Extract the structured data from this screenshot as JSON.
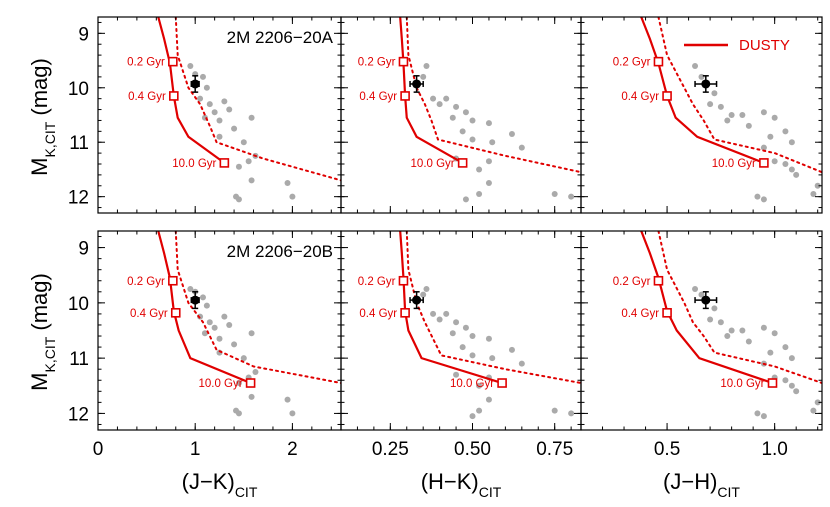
{
  "chart_data": {
    "type": "scatter",
    "ylabel": "M_K,CIT (mag)",
    "ylim": [
      12.3,
      8.7
    ],
    "y_ticks": [
      9,
      10,
      11,
      12
    ],
    "legend": {
      "label": "DUSTY",
      "color": "#e00000",
      "placement": "top-right"
    },
    "age_labels": [
      "0.2 Gyr",
      "0.4 Gyr",
      "10.0 Gyr"
    ],
    "columns": [
      {
        "xlabel_main": "(J−K)",
        "xlabel_sub": "CIT",
        "xlim": [
          0,
          2.5
        ],
        "ticks": [
          0,
          1,
          2
        ],
        "tick_labels": [
          "0",
          "1",
          "2"
        ]
      },
      {
        "xlabel_main": "(H−K)",
        "xlabel_sub": "CIT",
        "xlim": [
          0.1,
          0.83
        ],
        "ticks": [
          0.25,
          0.5,
          0.75
        ],
        "tick_labels": [
          "0.25",
          "0.50",
          "0.75"
        ]
      },
      {
        "xlabel_main": "(J−H)",
        "xlabel_sub": "CIT",
        "xlim": [
          0.1,
          1.22
        ],
        "ticks": [
          0.5,
          1.0
        ],
        "tick_labels": [
          "0.5",
          "1.0"
        ]
      }
    ],
    "rows": [
      {
        "label": "2M 2206−20A"
      },
      {
        "label": "2M 2206−20B"
      }
    ],
    "panels": [
      [
        {
          "solid": [
            [
              0.62,
              8.7
            ],
            [
              0.68,
              9.1
            ],
            [
              0.74,
              9.55
            ],
            [
              0.78,
              10.15
            ],
            [
              0.82,
              10.55
            ],
            [
              0.93,
              10.9
            ],
            [
              1.3,
              11.38
            ]
          ],
          "dotted": [
            [
              0.8,
              8.7
            ],
            [
              0.82,
              9.4
            ],
            [
              0.93,
              10.0
            ],
            [
              1.05,
              10.3
            ],
            [
              1.15,
              10.7
            ],
            [
              1.22,
              11.0
            ],
            [
              1.7,
              11.3
            ],
            [
              2.5,
              11.7
            ]
          ],
          "markers": [
            [
              0.77,
              9.52
            ],
            [
              0.78,
              10.15
            ],
            [
              1.3,
              11.38
            ]
          ],
          "target": {
            "x": 1.0,
            "y": 9.93,
            "xerr": 0.04,
            "yerr": 0.15
          },
          "field": [
            [
              0.95,
              9.6
            ],
            [
              1.0,
              9.75
            ],
            [
              1.08,
              9.8
            ],
            [
              1.12,
              10.0
            ],
            [
              1.05,
              10.2
            ],
            [
              1.15,
              10.3
            ],
            [
              1.2,
              10.45
            ],
            [
              1.1,
              10.55
            ],
            [
              1.25,
              10.6
            ],
            [
              1.3,
              10.25
            ],
            [
              1.35,
              10.4
            ],
            [
              1.25,
              10.9
            ],
            [
              1.4,
              10.75
            ],
            [
              1.5,
              11.0
            ],
            [
              1.58,
              10.55
            ],
            [
              1.62,
              11.25
            ],
            [
              1.55,
              11.35
            ],
            [
              1.45,
              11.45
            ],
            [
              1.58,
              11.7
            ],
            [
              1.42,
              12.0
            ],
            [
              1.45,
              12.05
            ],
            [
              1.95,
              11.75
            ],
            [
              2.0,
              12.0
            ]
          ]
        },
        {
          "solid": [
            [
              0.28,
              8.7
            ],
            [
              0.285,
              9.1
            ],
            [
              0.29,
              9.55
            ],
            [
              0.295,
              10.15
            ],
            [
              0.3,
              10.55
            ],
            [
              0.33,
              10.9
            ],
            [
              0.47,
              11.38
            ]
          ],
          "dotted": [
            [
              0.3,
              8.7
            ],
            [
              0.305,
              9.4
            ],
            [
              0.33,
              10.0
            ],
            [
              0.355,
              10.3
            ],
            [
              0.375,
              10.6
            ],
            [
              0.395,
              10.95
            ],
            [
              0.6,
              11.25
            ],
            [
              0.83,
              11.55
            ]
          ],
          "markers": [
            [
              0.29,
              9.52
            ],
            [
              0.295,
              10.15
            ],
            [
              0.47,
              11.38
            ]
          ],
          "target": {
            "x": 0.33,
            "y": 9.93,
            "xerr": 0.02,
            "yerr": 0.15
          },
          "field": [
            [
              0.36,
              9.6
            ],
            [
              0.35,
              9.8
            ],
            [
              0.38,
              10.2
            ],
            [
              0.4,
              10.3
            ],
            [
              0.42,
              10.2
            ],
            [
              0.45,
              10.35
            ],
            [
              0.48,
              10.45
            ],
            [
              0.44,
              10.55
            ],
            [
              0.5,
              10.6
            ],
            [
              0.55,
              10.65
            ],
            [
              0.47,
              10.8
            ],
            [
              0.5,
              10.95
            ],
            [
              0.56,
              11.0
            ],
            [
              0.62,
              10.85
            ],
            [
              0.65,
              11.1
            ],
            [
              0.45,
              11.3
            ],
            [
              0.55,
              11.35
            ],
            [
              0.52,
              11.5
            ],
            [
              0.55,
              11.75
            ],
            [
              0.52,
              11.95
            ],
            [
              0.48,
              12.05
            ],
            [
              0.75,
              11.95
            ],
            [
              0.8,
              12.0
            ]
          ]
        },
        {
          "solid": [
            [
              0.38,
              8.7
            ],
            [
              0.42,
              9.1
            ],
            [
              0.46,
              9.55
            ],
            [
              0.5,
              10.15
            ],
            [
              0.54,
              10.55
            ],
            [
              0.64,
              10.9
            ],
            [
              0.95,
              11.38
            ]
          ],
          "dotted": [
            [
              0.46,
              8.7
            ],
            [
              0.5,
              9.4
            ],
            [
              0.58,
              10.0
            ],
            [
              0.62,
              10.3
            ],
            [
              0.67,
              10.6
            ],
            [
              0.72,
              10.95
            ],
            [
              1.0,
              11.2
            ],
            [
              1.22,
              11.55
            ]
          ],
          "markers": [
            [
              0.46,
              9.52
            ],
            [
              0.5,
              10.15
            ],
            [
              0.95,
              11.38
            ]
          ],
          "target": {
            "x": 0.68,
            "y": 9.93,
            "xerr": 0.05,
            "yerr": 0.15
          },
          "field": [
            [
              0.63,
              9.6
            ],
            [
              0.66,
              9.8
            ],
            [
              0.72,
              10.1
            ],
            [
              0.7,
              10.3
            ],
            [
              0.75,
              10.35
            ],
            [
              0.8,
              10.5
            ],
            [
              0.78,
              10.6
            ],
            [
              0.85,
              10.5
            ],
            [
              0.95,
              10.45
            ],
            [
              1.0,
              10.55
            ],
            [
              0.88,
              10.7
            ],
            [
              0.98,
              10.9
            ],
            [
              1.05,
              10.8
            ],
            [
              1.08,
              11.0
            ],
            [
              0.95,
              11.1
            ],
            [
              1.0,
              11.35
            ],
            [
              1.05,
              11.4
            ],
            [
              1.08,
              11.5
            ],
            [
              1.1,
              11.6
            ],
            [
              0.92,
              12.0
            ],
            [
              0.95,
              12.05
            ],
            [
              1.2,
              11.8
            ],
            [
              1.18,
              11.95
            ]
          ]
        }
      ],
      [
        {
          "solid": [
            [
              0.62,
              8.7
            ],
            [
              0.68,
              9.1
            ],
            [
              0.74,
              9.55
            ],
            [
              0.78,
              10.15
            ],
            [
              0.83,
              10.5
            ],
            [
              0.95,
              11.0
            ],
            [
              1.57,
              11.45
            ]
          ],
          "dotted": [
            [
              0.8,
              8.7
            ],
            [
              0.82,
              9.4
            ],
            [
              0.93,
              10.0
            ],
            [
              1.08,
              10.35
            ],
            [
              1.15,
              10.6
            ],
            [
              1.22,
              10.85
            ],
            [
              1.6,
              11.15
            ],
            [
              2.5,
              11.45
            ]
          ],
          "markers": [
            [
              0.77,
              9.6
            ],
            [
              0.8,
              10.18
            ],
            [
              1.57,
              11.45
            ]
          ],
          "target": {
            "x": 1.0,
            "y": 9.95,
            "xerr": 0.04,
            "yerr": 0.15
          },
          "field": [
            [
              0.95,
              9.75
            ],
            [
              1.0,
              9.8
            ],
            [
              1.08,
              9.9
            ],
            [
              1.12,
              10.05
            ],
            [
              1.05,
              10.25
            ],
            [
              1.15,
              10.35
            ],
            [
              1.2,
              10.45
            ],
            [
              1.1,
              10.55
            ],
            [
              1.25,
              10.65
            ],
            [
              1.3,
              10.25
            ],
            [
              1.35,
              10.4
            ],
            [
              1.25,
              10.9
            ],
            [
              1.4,
              10.75
            ],
            [
              1.5,
              11.0
            ],
            [
              1.58,
              10.55
            ],
            [
              1.62,
              11.25
            ],
            [
              1.55,
              11.35
            ],
            [
              1.45,
              11.45
            ],
            [
              1.58,
              11.7
            ],
            [
              1.42,
              11.95
            ],
            [
              1.45,
              12.0
            ],
            [
              1.95,
              11.75
            ],
            [
              2.0,
              12.0
            ]
          ]
        },
        {
          "solid": [
            [
              0.28,
              8.7
            ],
            [
              0.285,
              9.1
            ],
            [
              0.29,
              9.55
            ],
            [
              0.295,
              10.15
            ],
            [
              0.305,
              10.5
            ],
            [
              0.345,
              11.0
            ],
            [
              0.59,
              11.45
            ]
          ],
          "dotted": [
            [
              0.3,
              8.7
            ],
            [
              0.305,
              9.4
            ],
            [
              0.33,
              10.0
            ],
            [
              0.355,
              10.35
            ],
            [
              0.38,
              10.65
            ],
            [
              0.405,
              10.95
            ],
            [
              0.6,
              11.2
            ],
            [
              0.83,
              11.45
            ]
          ],
          "markers": [
            [
              0.29,
              9.6
            ],
            [
              0.295,
              10.18
            ],
            [
              0.59,
              11.45
            ]
          ],
          "target": {
            "x": 0.33,
            "y": 9.95,
            "xerr": 0.02,
            "yerr": 0.15
          },
          "field": [
            [
              0.36,
              9.75
            ],
            [
              0.35,
              9.85
            ],
            [
              0.38,
              10.2
            ],
            [
              0.4,
              10.3
            ],
            [
              0.42,
              10.2
            ],
            [
              0.45,
              10.35
            ],
            [
              0.48,
              10.45
            ],
            [
              0.44,
              10.55
            ],
            [
              0.5,
              10.6
            ],
            [
              0.55,
              10.65
            ],
            [
              0.47,
              10.8
            ],
            [
              0.5,
              10.95
            ],
            [
              0.56,
              11.0
            ],
            [
              0.62,
              10.85
            ],
            [
              0.65,
              11.1
            ],
            [
              0.45,
              11.3
            ],
            [
              0.55,
              11.35
            ],
            [
              0.52,
              11.5
            ],
            [
              0.55,
              11.75
            ],
            [
              0.52,
              11.95
            ],
            [
              0.5,
              12.05
            ],
            [
              0.75,
              11.95
            ],
            [
              0.8,
              12.0
            ]
          ]
        },
        {
          "solid": [
            [
              0.38,
              8.7
            ],
            [
              0.42,
              9.1
            ],
            [
              0.46,
              9.55
            ],
            [
              0.5,
              10.15
            ],
            [
              0.545,
              10.5
            ],
            [
              0.65,
              11.0
            ],
            [
              0.99,
              11.45
            ]
          ],
          "dotted": [
            [
              0.46,
              8.7
            ],
            [
              0.5,
              9.4
            ],
            [
              0.58,
              10.0
            ],
            [
              0.62,
              10.35
            ],
            [
              0.67,
              10.6
            ],
            [
              0.72,
              10.9
            ],
            [
              1.0,
              11.15
            ],
            [
              1.22,
              11.45
            ]
          ],
          "markers": [
            [
              0.46,
              9.6
            ],
            [
              0.5,
              10.18
            ],
            [
              0.99,
              11.45
            ]
          ],
          "target": {
            "x": 0.68,
            "y": 9.95,
            "xerr": 0.05,
            "yerr": 0.15
          },
          "field": [
            [
              0.63,
              9.75
            ],
            [
              0.66,
              9.85
            ],
            [
              0.72,
              10.1
            ],
            [
              0.7,
              10.3
            ],
            [
              0.75,
              10.35
            ],
            [
              0.8,
              10.5
            ],
            [
              0.78,
              10.6
            ],
            [
              0.85,
              10.5
            ],
            [
              0.95,
              10.45
            ],
            [
              1.0,
              10.55
            ],
            [
              0.88,
              10.7
            ],
            [
              0.98,
              10.9
            ],
            [
              1.05,
              10.8
            ],
            [
              1.08,
              11.0
            ],
            [
              0.95,
              11.1
            ],
            [
              1.0,
              11.35
            ],
            [
              1.05,
              11.4
            ],
            [
              1.08,
              11.5
            ],
            [
              1.1,
              11.6
            ],
            [
              0.92,
              12.0
            ],
            [
              0.95,
              12.05
            ],
            [
              1.2,
              11.8
            ],
            [
              1.18,
              11.95
            ]
          ]
        }
      ]
    ]
  }
}
